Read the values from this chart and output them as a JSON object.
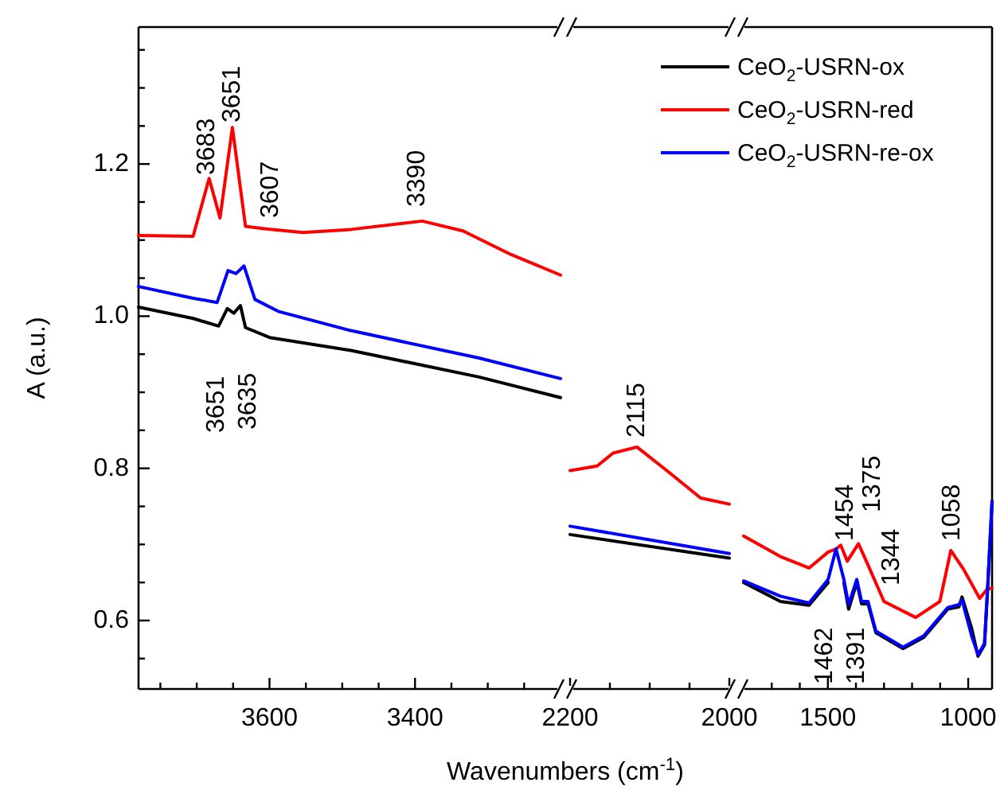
{
  "chart_data": [
    {
      "type": "line",
      "ylabel": "A (a.u.)",
      "xlim": [
        3780,
        3200
      ],
      "xticks": [
        {
          "value": 3750,
          "label": null
        },
        {
          "value": 3700,
          "label": null
        },
        {
          "value": 3650,
          "label": null
        },
        3600,
        {
          "value": 3550,
          "label": null
        },
        {
          "value": 3500,
          "label": null
        },
        {
          "value": 3450,
          "label": null
        },
        3400,
        {
          "value": 3350,
          "label": null
        },
        {
          "value": 3300,
          "label": null
        },
        {
          "value": 3250,
          "label": null
        }
      ],
      "ylim": [
        0.51,
        1.38
      ],
      "yticks": [
        {
          "value": 0.55,
          "label": null
        },
        0.6,
        {
          "value": 0.65,
          "label": null
        },
        {
          "value": 0.7,
          "label": null
        },
        {
          "value": 0.75,
          "label": null
        },
        0.8,
        {
          "value": 0.85,
          "label": null
        },
        {
          "value": 0.9,
          "label": null
        },
        {
          "value": 0.95,
          "label": null
        },
        {
          "value": 1.0,
          "label": "1.0"
        },
        {
          "value": 1.05,
          "label": null
        },
        {
          "value": 1.1,
          "label": null
        },
        {
          "value": 1.15,
          "label": null
        },
        1.2,
        {
          "value": 1.25,
          "label": null
        },
        {
          "value": 1.3,
          "label": null
        },
        {
          "value": 1.35,
          "label": null
        }
      ],
      "series": [
        {
          "color": "#000000",
          "x": [
            3780,
            3705,
            3670,
            3658,
            3649,
            3640,
            3633,
            3600,
            3488,
            3312,
            3200
          ],
          "values": [
            1.012,
            0.997,
            0.987,
            1.01,
            1.004,
            1.014,
            0.985,
            0.972,
            0.955,
            0.92,
            0.893
          ]
        },
        {
          "color": "#ff0000",
          "x": [
            3780,
            3705,
            3683,
            3668,
            3651,
            3633,
            3607,
            3554,
            3488,
            3390,
            3334,
            3268,
            3200
          ],
          "values": [
            1.106,
            1.105,
            1.181,
            1.129,
            1.248,
            1.118,
            1.115,
            1.11,
            1.114,
            1.125,
            1.112,
            1.081,
            1.054
          ]
        },
        {
          "color": "#0000ff",
          "x": [
            3780,
            3707,
            3672,
            3657,
            3646,
            3635,
            3620,
            3587,
            3488,
            3312,
            3200
          ],
          "values": [
            1.039,
            1.024,
            1.018,
            1.06,
            1.056,
            1.066,
            1.022,
            1.006,
            0.981,
            0.945,
            0.918
          ]
        }
      ],
      "annotations": [
        "3683",
        "3651",
        "3607",
        "3390",
        "3651",
        "3635"
      ]
    },
    {
      "type": "line",
      "xlabel": "Wavenumbers (cm$^{-1}$)",
      "xlim": [
        2200,
        2000
      ],
      "xticks": [
        2200,
        {
          "value": 2150,
          "label": null
        },
        {
          "value": 2100,
          "label": null
        },
        {
          "value": 2050,
          "label": null
        },
        2000
      ],
      "ylim": [
        0.51,
        1.38
      ],
      "tick_labels": "x",
      "series": [
        {
          "color": "#000000",
          "x": [
            2200,
            2000
          ],
          "values": [
            0.713,
            0.682
          ]
        },
        {
          "color": "#ff0000",
          "x": [
            2200,
            2166,
            2146,
            2116,
            2076,
            2036,
            2000
          ],
          "values": [
            0.797,
            0.803,
            0.82,
            0.828,
            0.795,
            0.761,
            0.753
          ]
        },
        {
          "color": "#0000ff",
          "x": [
            2200,
            2000
          ],
          "values": [
            0.724,
            0.688
          ]
        }
      ],
      "annotations": [
        "2115"
      ]
    },
    {
      "type": "line",
      "xlim": [
        1800,
        915
      ],
      "xticks": [
        {
          "value": 1700,
          "label": null
        },
        {
          "value": 1600,
          "label": null
        },
        1500,
        {
          "value": 1400,
          "label": null
        },
        {
          "value": 1300,
          "label": null
        },
        {
          "value": 1200,
          "label": null
        },
        {
          "value": 1100,
          "label": null
        },
        1000
      ],
      "ylim": [
        0.51,
        1.38
      ],
      "tick_labels": "x",
      "legend": "top left",
      "series": [
        {
          "name": "CeO$_{2}$-USRN-ox",
          "color": "#000000",
          "x": [
            1800,
            1669,
            1567,
            1499,
            1471,
            1443,
            1426,
            1397,
            1380,
            1357,
            1329,
            1232,
            1158,
            1073,
            1033,
            1022,
            988,
            965,
            942,
            931,
            915
          ],
          "values": [
            0.65,
            0.625,
            0.62,
            0.65,
            null,
            0.65,
            0.615,
            0.65,
            0.622,
            0.622,
            0.584,
            0.563,
            0.578,
            0.615,
            0.618,
            0.631,
            0.59,
            0.553,
            0.568,
            0.64,
            0.757
          ]
        },
        {
          "name": "CeO$_{2}$-USRN-red",
          "color": "#ff0000",
          "x": [
            1800,
            1669,
            1567,
            1499,
            1471,
            1454,
            1431,
            1391,
            1357,
            1300,
            1187,
            1101,
            1062,
            1016,
            959,
            931,
            915
          ],
          "values": [
            0.711,
            0.684,
            0.669,
            0.69,
            0.694,
            0.699,
            0.678,
            0.701,
            0.673,
            0.625,
            0.604,
            0.625,
            0.692,
            0.667,
            0.629,
            0.642,
            0.642
          ]
        },
        {
          "name": "CeO$_{2}$-USRN-re-ox",
          "color": "#0000ff",
          "x": [
            1800,
            1669,
            1567,
            1499,
            1471,
            1443,
            1426,
            1397,
            1380,
            1357,
            1329,
            1232,
            1158,
            1073,
            1033,
            1022,
            988,
            965,
            942,
            931,
            915
          ],
          "values": [
            0.652,
            0.632,
            0.623,
            0.654,
            0.694,
            0.654,
            0.621,
            0.654,
            0.625,
            0.625,
            0.586,
            0.565,
            0.58,
            0.617,
            0.621,
            0.627,
            0.58,
            0.555,
            0.57,
            0.642,
            0.757
          ]
        }
      ],
      "annotations": [
        "1454",
        "1375",
        "1344",
        "1058",
        "1462",
        "1391"
      ]
    }
  ]
}
